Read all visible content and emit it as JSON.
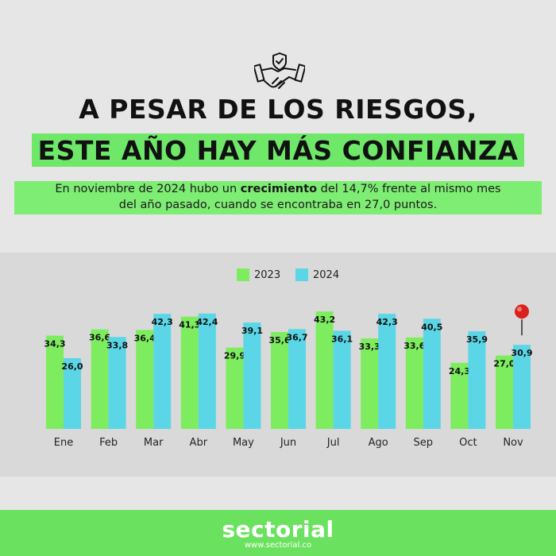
{
  "header": {
    "icon": "handshake-shield-icon",
    "title_line1": "A PESAR DE LOS RIESGOS,",
    "title_line2": "ESTE AÑO HAY MÁS CONFIANZA"
  },
  "subtitle": {
    "line1_prefix": "En noviembre de 2024 hubo un ",
    "line1_bold": "crecimiento",
    "line1_suffix": " del 14,7% frente al mismo mes",
    "line2": "del año pasado, cuando se encontraba en 27,0 puntos."
  },
  "colors": {
    "series_2023": "#7ded5f",
    "series_2024": "#5ad6e6",
    "accent_green": "#6fe86a",
    "pin": "#d9221c"
  },
  "chart_data": {
    "type": "bar",
    "categories": [
      "Ene",
      "Feb",
      "Mar",
      "Abr",
      "May",
      "Jun",
      "Jul",
      "Ago",
      "Sep",
      "Oct",
      "Nov"
    ],
    "series": [
      {
        "name": "2023",
        "values": [
          34.3,
          36.6,
          36.4,
          41.3,
          29.9,
          35.6,
          43.2,
          33.3,
          33.6,
          24.3,
          27.0
        ],
        "labels": [
          "34,3",
          "36,6",
          "36,4",
          "41,3",
          "29,9",
          "35,6",
          "43,2",
          "33,3",
          "33,6",
          "24,3",
          "27,0"
        ]
      },
      {
        "name": "2024",
        "values": [
          26.0,
          33.8,
          42.3,
          42.4,
          39.1,
          36.7,
          36.1,
          42.3,
          40.5,
          35.9,
          30.9
        ],
        "labels": [
          "26,0",
          "33,8",
          "42,3",
          "42,4",
          "39,1",
          "36,7",
          "36,1",
          "42,3",
          "40,5",
          "35,9",
          "30,9"
        ]
      }
    ],
    "legend_position": "top-center",
    "highlight": {
      "category": "Nov",
      "series": "2024",
      "marker": "pin-icon"
    }
  },
  "footer": {
    "brand": "sectorial",
    "url": "www.sectorial.co"
  }
}
